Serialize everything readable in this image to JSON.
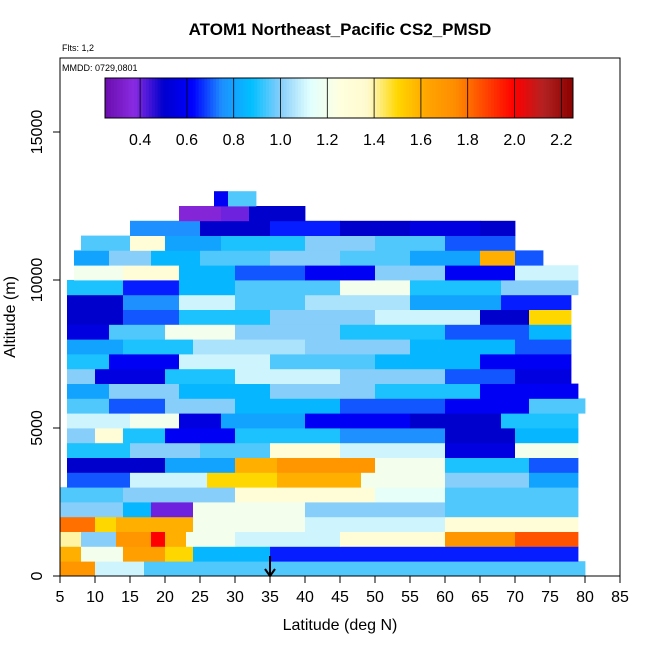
{
  "chart_data": {
    "type": "heatmap",
    "title": "ATOM1 Northeast_Pacific CS2_PMSD",
    "flights_label": "Flts: 1,2",
    "dates_label": "MMDD: 0729,0801",
    "xlabel": "Latitude (deg N)",
    "ylabel": "Altitude (m)",
    "xlim": [
      5,
      85
    ],
    "ylim": [
      0,
      17500
    ],
    "x_ticks": [
      "5",
      "10",
      "15",
      "20",
      "25",
      "30",
      "35",
      "40",
      "45",
      "50",
      "55",
      "60",
      "65",
      "70",
      "75",
      "80",
      "85"
    ],
    "y_ticks": [
      "0",
      "5000",
      "10000",
      "15000"
    ],
    "colorbar": {
      "range": [
        0.25,
        2.25
      ],
      "ticks": [
        "0.4",
        "0.6",
        "0.8",
        "1.0",
        "1.2",
        "1.4",
        "1.6",
        "1.8",
        "2.0",
        "2.2"
      ],
      "colors": [
        "#6a0dad",
        "#8a2be2",
        "#0000cd",
        "#0000ff",
        "#1e90ff",
        "#00bfff",
        "#87cefa",
        "#e0ffff",
        "#ffffe0",
        "#fffacd",
        "#ffd700",
        "#ffa500",
        "#ff8c00",
        "#ff4500",
        "#ff0000",
        "#b22222",
        "#8b0000"
      ]
    },
    "marker": {
      "label": "arrow",
      "latitude": 35
    },
    "layers": [
      {
        "alt": [
          0,
          500
        ],
        "lat": [
          5,
          79
        ],
        "cells": [
          [
            5,
            10,
            1.7
          ],
          [
            10,
            17,
            1.1
          ],
          [
            17,
            80,
            0.95
          ]
        ]
      },
      {
        "alt": [
          500,
          1000
        ],
        "lat": [
          5,
          79
        ],
        "cells": [
          [
            5,
            8,
            1.6
          ],
          [
            8,
            14,
            1.2
          ],
          [
            14,
            20,
            1.65
          ],
          [
            20,
            24,
            1.5
          ],
          [
            24,
            35,
            0.85
          ],
          [
            35,
            79,
            0.65
          ]
        ]
      },
      {
        "alt": [
          1000,
          1500
        ],
        "lat": [
          5,
          79
        ],
        "cells": [
          [
            5,
            8,
            1.4
          ],
          [
            8,
            13,
            1.0
          ],
          [
            13,
            18,
            1.7
          ],
          [
            18,
            20,
            2.0
          ],
          [
            20,
            23,
            1.6
          ],
          [
            23,
            30,
            1.2
          ],
          [
            30,
            45,
            1.1
          ],
          [
            45,
            60,
            1.3
          ],
          [
            60,
            70,
            1.7
          ],
          [
            70,
            79,
            1.85
          ]
        ]
      },
      {
        "alt": [
          1500,
          2000
        ],
        "lat": [
          5,
          79
        ],
        "cells": [
          [
            5,
            10,
            1.8
          ],
          [
            10,
            13,
            1.5
          ],
          [
            13,
            24,
            1.6
          ],
          [
            24,
            40,
            1.2
          ],
          [
            40,
            60,
            1.1
          ],
          [
            60,
            79,
            1.3
          ]
        ]
      },
      {
        "alt": [
          2000,
          2500
        ],
        "lat": [
          5,
          79
        ],
        "cells": [
          [
            5,
            14,
            1.0
          ],
          [
            14,
            18,
            0.85
          ],
          [
            18,
            24,
            0.4
          ],
          [
            24,
            40,
            1.2
          ],
          [
            40,
            60,
            1.0
          ],
          [
            60,
            79,
            0.95
          ]
        ]
      },
      {
        "alt": [
          2500,
          3000
        ],
        "lat": [
          5,
          79
        ],
        "cells": [
          [
            5,
            14,
            0.95
          ],
          [
            14,
            30,
            1.0
          ],
          [
            30,
            50,
            1.3
          ],
          [
            50,
            60,
            1.15
          ],
          [
            60,
            79,
            0.95
          ]
        ]
      },
      {
        "alt": [
          3000,
          3500
        ],
        "lat": [
          6,
          79
        ],
        "cells": [
          [
            6,
            15,
            0.7
          ],
          [
            15,
            26,
            1.1
          ],
          [
            26,
            36,
            1.5
          ],
          [
            36,
            48,
            1.6
          ],
          [
            48,
            60,
            1.2
          ],
          [
            60,
            72,
            1.0
          ],
          [
            72,
            79,
            0.8
          ]
        ]
      },
      {
        "alt": [
          3500,
          4000
        ],
        "lat": [
          6,
          79
        ],
        "cells": [
          [
            6,
            20,
            0.5
          ],
          [
            20,
            30,
            0.8
          ],
          [
            30,
            36,
            1.6
          ],
          [
            36,
            50,
            1.7
          ],
          [
            50,
            60,
            1.2
          ],
          [
            60,
            72,
            0.9
          ],
          [
            72,
            79,
            0.7
          ]
        ]
      },
      {
        "alt": [
          4000,
          4500
        ],
        "lat": [
          6,
          79
        ],
        "cells": [
          [
            6,
            15,
            0.9
          ],
          [
            15,
            25,
            1.0
          ],
          [
            25,
            35,
            0.95
          ],
          [
            35,
            45,
            1.3
          ],
          [
            45,
            60,
            1.1
          ],
          [
            60,
            70,
            0.55
          ],
          [
            70,
            79,
            1.2
          ]
        ]
      },
      {
        "alt": [
          4500,
          5000
        ],
        "lat": [
          6,
          79
        ],
        "cells": [
          [
            6,
            10,
            1.0
          ],
          [
            10,
            14,
            1.3
          ],
          [
            14,
            20,
            0.9
          ],
          [
            20,
            30,
            0.6
          ],
          [
            30,
            45,
            0.9
          ],
          [
            45,
            60,
            0.75
          ],
          [
            60,
            70,
            0.5
          ],
          [
            70,
            79,
            0.85
          ]
        ]
      },
      {
        "alt": [
          5000,
          5500
        ],
        "lat": [
          6,
          79
        ],
        "cells": [
          [
            6,
            15,
            1.1
          ],
          [
            15,
            22,
            1.2
          ],
          [
            22,
            28,
            0.55
          ],
          [
            28,
            40,
            0.8
          ],
          [
            40,
            55,
            0.6
          ],
          [
            55,
            68,
            0.5
          ],
          [
            68,
            79,
            0.9
          ]
        ]
      },
      {
        "alt": [
          5500,
          6000
        ],
        "lat": [
          6,
          80
        ],
        "cells": [
          [
            6,
            12,
            0.95
          ],
          [
            12,
            20,
            0.7
          ],
          [
            20,
            30,
            1.0
          ],
          [
            30,
            45,
            0.85
          ],
          [
            45,
            60,
            0.7
          ],
          [
            60,
            72,
            0.6
          ],
          [
            72,
            80,
            0.95
          ]
        ]
      },
      {
        "alt": [
          6000,
          6500
        ],
        "lat": [
          6,
          79
        ],
        "cells": [
          [
            6,
            12,
            0.8
          ],
          [
            12,
            22,
            1.0
          ],
          [
            22,
            35,
            0.85
          ],
          [
            35,
            50,
            1.0
          ],
          [
            50,
            65,
            0.9
          ],
          [
            65,
            79,
            0.6
          ]
        ]
      },
      {
        "alt": [
          6500,
          7000
        ],
        "lat": [
          6,
          78
        ],
        "cells": [
          [
            6,
            10,
            1.0
          ],
          [
            10,
            20,
            0.55
          ],
          [
            20,
            30,
            0.9
          ],
          [
            30,
            45,
            1.1
          ],
          [
            45,
            60,
            1.0
          ],
          [
            60,
            70,
            0.7
          ],
          [
            70,
            78,
            0.55
          ]
        ]
      },
      {
        "alt": [
          7000,
          7500
        ],
        "lat": [
          6,
          78
        ],
        "cells": [
          [
            6,
            12,
            0.9
          ],
          [
            12,
            22,
            0.6
          ],
          [
            22,
            35,
            1.1
          ],
          [
            35,
            50,
            0.95
          ],
          [
            50,
            65,
            0.85
          ],
          [
            65,
            78,
            0.6
          ]
        ]
      },
      {
        "alt": [
          7500,
          8000
        ],
        "lat": [
          6,
          78
        ],
        "cells": [
          [
            6,
            14,
            0.8
          ],
          [
            14,
            24,
            0.9
          ],
          [
            24,
            40,
            1.05
          ],
          [
            40,
            55,
            1.0
          ],
          [
            55,
            70,
            0.85
          ],
          [
            70,
            78,
            0.7
          ]
        ]
      },
      {
        "alt": [
          8000,
          8500
        ],
        "lat": [
          6,
          78
        ],
        "cells": [
          [
            6,
            12,
            0.55
          ],
          [
            12,
            20,
            0.95
          ],
          [
            20,
            30,
            1.2
          ],
          [
            30,
            45,
            1.0
          ],
          [
            45,
            60,
            0.9
          ],
          [
            60,
            72,
            0.7
          ],
          [
            72,
            78,
            0.85
          ]
        ]
      },
      {
        "alt": [
          8500,
          9000
        ],
        "lat": [
          6,
          78
        ],
        "cells": [
          [
            6,
            14,
            0.5
          ],
          [
            14,
            22,
            0.7
          ],
          [
            22,
            35,
            0.9
          ],
          [
            35,
            50,
            1.0
          ],
          [
            50,
            65,
            1.1
          ],
          [
            65,
            72,
            0.5
          ],
          [
            72,
            78,
            1.5
          ]
        ]
      },
      {
        "alt": [
          9000,
          9500
        ],
        "lat": [
          6,
          78
        ],
        "cells": [
          [
            6,
            14,
            0.5
          ],
          [
            14,
            22,
            0.75
          ],
          [
            22,
            30,
            1.1
          ],
          [
            30,
            40,
            0.95
          ],
          [
            40,
            55,
            1.05
          ],
          [
            55,
            68,
            0.8
          ],
          [
            68,
            78,
            0.65
          ]
        ]
      },
      {
        "alt": [
          9500,
          10000
        ],
        "lat": [
          6,
          79
        ],
        "cells": [
          [
            6,
            14,
            0.9
          ],
          [
            14,
            22,
            0.65
          ],
          [
            22,
            30,
            0.85
          ],
          [
            30,
            45,
            0.95
          ],
          [
            45,
            55,
            1.2
          ],
          [
            55,
            68,
            0.9
          ],
          [
            68,
            79,
            1.0
          ]
        ]
      },
      {
        "alt": [
          10000,
          10500
        ],
        "lat": [
          7,
          79
        ],
        "cells": [
          [
            7,
            14,
            1.2
          ],
          [
            14,
            22,
            1.3
          ],
          [
            22,
            30,
            0.85
          ],
          [
            30,
            40,
            0.7
          ],
          [
            40,
            50,
            0.6
          ],
          [
            50,
            60,
            1.0
          ],
          [
            60,
            70,
            0.6
          ],
          [
            70,
            79,
            1.1
          ]
        ]
      },
      {
        "alt": [
          10500,
          11000
        ],
        "lat": [
          7,
          74
        ],
        "cells": [
          [
            7,
            12,
            0.8
          ],
          [
            12,
            18,
            1.0
          ],
          [
            18,
            25,
            0.85
          ],
          [
            25,
            35,
            0.95
          ],
          [
            35,
            45,
            1.0
          ],
          [
            45,
            55,
            0.95
          ],
          [
            55,
            65,
            0.8
          ],
          [
            65,
            70,
            1.6
          ],
          [
            70,
            74,
            0.7
          ]
        ]
      },
      {
        "alt": [
          11000,
          11500
        ],
        "lat": [
          8,
          70
        ],
        "cells": [
          [
            8,
            15,
            0.95
          ],
          [
            15,
            20,
            1.3
          ],
          [
            20,
            28,
            0.8
          ],
          [
            28,
            40,
            0.9
          ],
          [
            40,
            50,
            1.0
          ],
          [
            50,
            60,
            0.95
          ],
          [
            60,
            70,
            0.7
          ]
        ]
      },
      {
        "alt": [
          11500,
          12000
        ],
        "lat": [
          15,
          70
        ],
        "cells": [
          [
            15,
            25,
            0.75
          ],
          [
            25,
            35,
            0.5
          ],
          [
            35,
            45,
            0.65
          ],
          [
            45,
            55,
            0.5
          ],
          [
            55,
            65,
            0.55
          ],
          [
            65,
            70,
            0.5
          ]
        ]
      },
      {
        "alt": [
          12000,
          12500
        ],
        "lat": [
          22,
          40
        ],
        "cells": [
          [
            22,
            28,
            0.35
          ],
          [
            28,
            32,
            0.4
          ],
          [
            32,
            40,
            0.5
          ]
        ]
      },
      {
        "alt": [
          12500,
          13000
        ],
        "lat": [
          27,
          33
        ],
        "cells": [
          [
            27,
            29,
            0.6
          ],
          [
            29,
            33,
            0.95
          ]
        ]
      }
    ]
  }
}
